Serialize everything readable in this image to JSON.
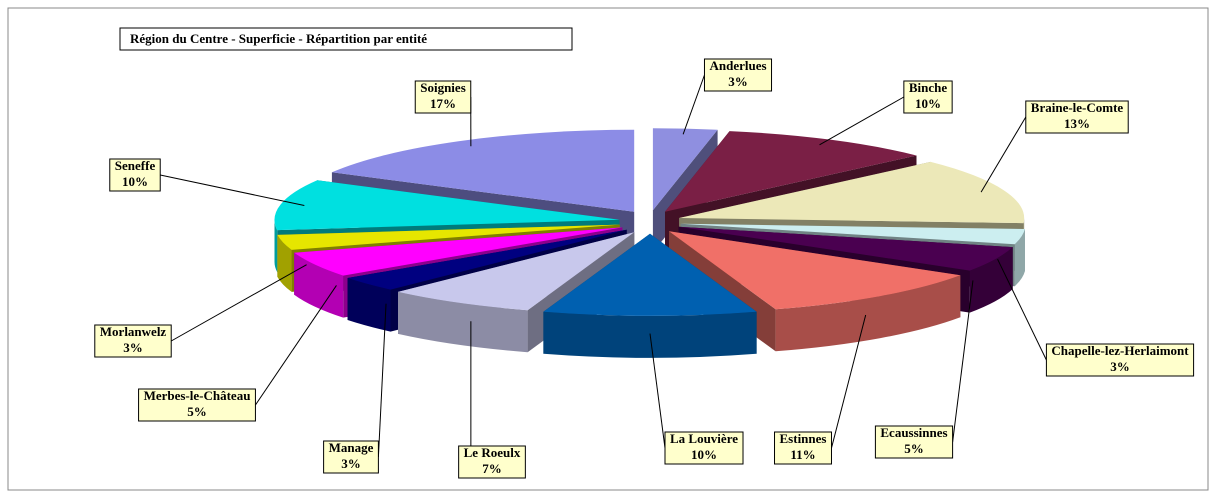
{
  "chart_data": {
    "type": "pie",
    "title": "Région du Centre - Superficie - Répartition par entité",
    "categories": [
      "Anderlues",
      "Binche",
      "Braine-le-Comte",
      "Chapelle-lez-Herlaimont",
      "Ecaussinnes",
      "Estinnes",
      "La Louvière",
      "Le Roeulx",
      "Manage",
      "Merbes-le-Château",
      "Morlanwelz",
      "Seneffe",
      "Soignies"
    ],
    "values": [
      3,
      10,
      13,
      3,
      5,
      11,
      10,
      7,
      3,
      5,
      3,
      10,
      17
    ],
    "value_labels": [
      "3%",
      "10%",
      "13%",
      "3%",
      "5%",
      "11%",
      "10%",
      "7%",
      "3%",
      "5%",
      "3%",
      "10%",
      "17%"
    ],
    "colors": [
      "#8f8fe0",
      "#7a1f45",
      "#ece8b8",
      "#cceef0",
      "#4a0050",
      "#f07068",
      "#0060b0",
      "#c8c8ec",
      "#000080",
      "#ff00ff",
      "#e6e600",
      "#00e0e0",
      "#8c8ce6"
    ]
  }
}
